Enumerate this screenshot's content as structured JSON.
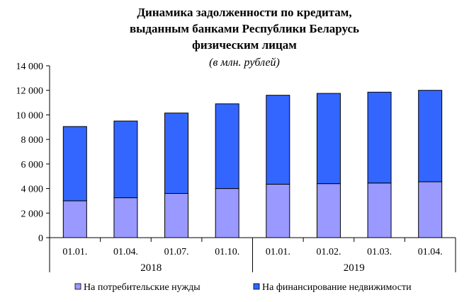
{
  "chart_data": {
    "type": "bar",
    "stacked": true,
    "title_lines": [
      "Динамика задолженности по кредитам,",
      "выданным банками Республики Беларусь",
      "физическим лицам"
    ],
    "subtitle": "(в млн. рублей)",
    "categories": [
      "01.01.",
      "01.04.",
      "01.07.",
      "01.10.",
      "01.01.",
      "01.02.",
      "01.03.",
      "01.04."
    ],
    "year_groups": [
      {
        "label": "2018",
        "start": 0,
        "end": 3
      },
      {
        "label": "2019",
        "start": 4,
        "end": 7
      }
    ],
    "ylim": [
      0,
      14000
    ],
    "yticks": [
      0,
      2000,
      4000,
      6000,
      8000,
      10000,
      12000,
      14000
    ],
    "ytick_labels": [
      "0",
      "2 000",
      "4 000",
      "6 000",
      "8 000",
      "10 000",
      "12 000",
      "14 000"
    ],
    "legend_position": "bottom",
    "series": [
      {
        "name": "На потребительские нужды",
        "color": "#9999ff",
        "values": [
          3000,
          3250,
          3600,
          4000,
          4350,
          4400,
          4450,
          4550
        ]
      },
      {
        "name": "На финансирование недвижимости",
        "color": "#3366ff",
        "values": [
          6050,
          6250,
          6550,
          6900,
          7250,
          7350,
          7400,
          7450
        ]
      }
    ]
  }
}
